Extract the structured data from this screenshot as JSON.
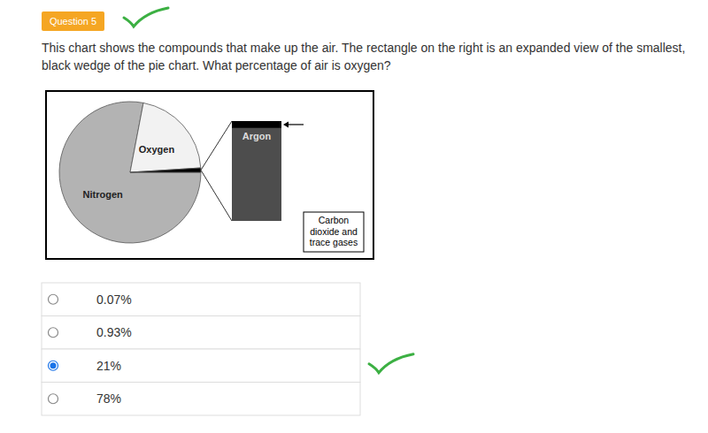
{
  "question": {
    "badge": "Question 5",
    "marked_correct": true,
    "text": "This chart shows the compounds that make up the air. The rectangle on the right is an expanded view of the smallest, black wedge of the pie chart. What percentage of air is oxygen?"
  },
  "chart_data": [
    {
      "type": "pie",
      "categories": [
        "Nitrogen",
        "Oxygen",
        null
      ],
      "values": [
        78,
        21,
        1
      ],
      "colors": [
        "#b3b3b3",
        "#f2f2f2",
        "#000000"
      ]
    },
    {
      "type": "bar",
      "stacked": true,
      "categories": [
        null
      ],
      "ylim": [
        0,
        1
      ],
      "tick_labels": false,
      "series": [
        {
          "name": "Argon",
          "color": "#4d4d4d",
          "values": [
            0.93
          ]
        },
        {
          "name": "Carbon dioxide and trace gases",
          "color": "#000000",
          "values": [
            0.07
          ]
        }
      ]
    }
  ],
  "options": [
    {
      "label": "0.07%",
      "selected": false,
      "marked_correct": false
    },
    {
      "label": "0.93%",
      "selected": false,
      "marked_correct": false
    },
    {
      "label": "21%",
      "selected": true,
      "marked_correct": true
    },
    {
      "label": "78%",
      "selected": false,
      "marked_correct": false
    }
  ]
}
